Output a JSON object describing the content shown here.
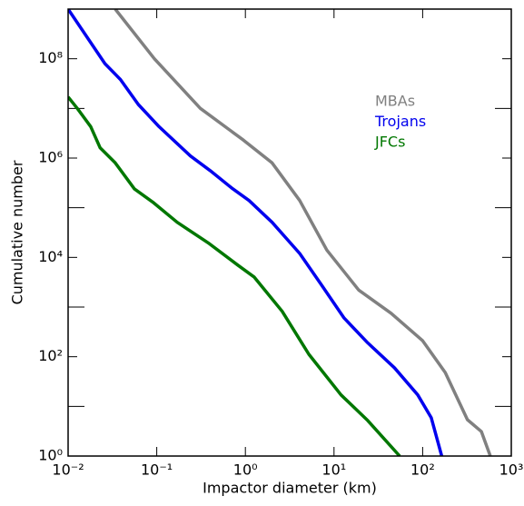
{
  "chart_data": {
    "type": "line",
    "xlabel": "Impactor diameter (km)",
    "ylabel": "Cumulative number",
    "log_x": true,
    "log_y": true,
    "xlim": [
      0.01,
      1000
    ],
    "ylim": [
      1,
      1000000000
    ],
    "xticks": [
      {
        "value": 0.01,
        "label": "10⁻²"
      },
      {
        "value": 0.1,
        "label": "10⁻¹"
      },
      {
        "value": 1,
        "label": "10⁰"
      },
      {
        "value": 10,
        "label": "10¹"
      },
      {
        "value": 100,
        "label": "10²"
      },
      {
        "value": 1000,
        "label": "10³"
      }
    ],
    "yticks": [
      {
        "value": 1,
        "label": "10⁰"
      },
      {
        "value": 100,
        "label": "10²"
      },
      {
        "value": 10000,
        "label": "10⁴"
      },
      {
        "value": 1000000,
        "label": "10⁶"
      },
      {
        "value": 100000000,
        "label": "10⁸"
      }
    ],
    "yminor": [
      10,
      1000,
      100000,
      10000000
    ],
    "series": [
      {
        "name": "MBAs",
        "color": "#808080",
        "x": [
          0.034,
          0.094,
          0.31,
          0.95,
          2.0,
          4.1,
          8.3,
          19,
          44,
          100,
          180,
          320,
          460,
          580
        ],
        "values": [
          1000000000,
          100000000,
          10000000,
          2300000,
          800000,
          140000,
          14000,
          2200,
          750,
          210,
          48,
          5.4,
          3.1,
          1
        ]
      },
      {
        "name": "Trojans",
        "color": "#0000ee",
        "x": [
          0.01,
          0.026,
          0.039,
          0.062,
          0.106,
          0.24,
          0.4,
          0.7,
          1.1,
          2.0,
          4.1,
          7.3,
          13,
          24,
          48,
          88,
          125,
          164
        ],
        "values": [
          1000000000,
          80000000,
          38000000,
          12000000,
          4300000,
          1100000,
          560000,
          250000,
          140000,
          51000,
          12000,
          2700,
          600,
          190,
          60,
          17,
          5.9,
          1
        ]
      },
      {
        "name": "JFCs",
        "color": "#007700",
        "x": [
          0.01,
          0.0127,
          0.018,
          0.023,
          0.034,
          0.056,
          0.09,
          0.17,
          0.39,
          0.82,
          1.26,
          2.6,
          5.2,
          12,
          24,
          55
        ],
        "values": [
          17000000,
          10000000,
          4300000,
          1600000,
          800000,
          240000,
          130000,
          51000,
          19000,
          7000,
          4000,
          820,
          112,
          17,
          5.2,
          1
        ]
      }
    ]
  }
}
